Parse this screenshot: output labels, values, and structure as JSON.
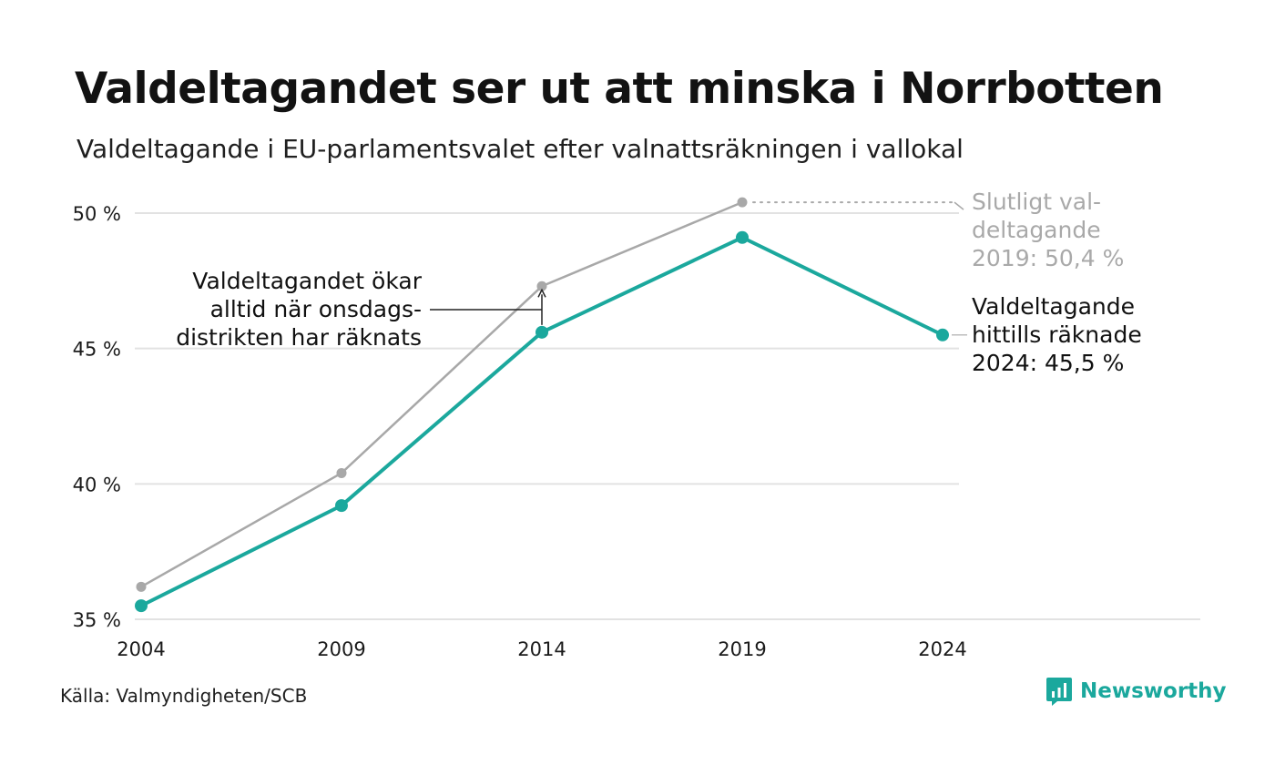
{
  "header": {
    "title": "Valdeltagandet ser ut att minska i Norrbotten",
    "subtitle": "Valdeltagande i EU-parlamentsvalet efter valnattsräkningen i vallokal"
  },
  "footer": {
    "source": "Källa: Valmyndigheten/SCB",
    "brand": "Newsworthy"
  },
  "colors": {
    "accent": "#1ba89d",
    "grey_series": "#a8a8a8",
    "grid": "#e2e2e2",
    "text": "#1b1b1b",
    "muted_text": "#a9a9a9"
  },
  "icons": {
    "brand_logo": "newsworthy-bar-chart-icon"
  },
  "chart_data": {
    "type": "line",
    "x": [
      2004,
      2009,
      2014,
      2019,
      2024
    ],
    "ylim": [
      35,
      50
    ],
    "yticks": [
      35,
      40,
      45,
      50
    ],
    "ytick_labels": [
      "35 %",
      "40 %",
      "45 %",
      "50 %"
    ],
    "xtick_labels": [
      "2004",
      "2009",
      "2014",
      "2019",
      "2024"
    ],
    "grid": "horizontal",
    "series": [
      {
        "key": "final",
        "values": [
          36.2,
          40.4,
          47.3,
          50.4,
          null
        ],
        "color": "#a8a8a8"
      },
      {
        "key": "counted",
        "values": [
          35.5,
          39.2,
          45.6,
          49.1,
          45.5
        ],
        "color": "#1ba89d"
      }
    ],
    "annotations": {
      "final_2019": [
        "Slutligt val-",
        "deltagande",
        "2019: 50,4 %"
      ],
      "counted_2024": [
        "Valdeltagande",
        "hittills räknade",
        "2024: 45,5 %"
      ],
      "increase_note": [
        "Valdeltagandet ökar",
        "alltid när onsdags-",
        "distrikten har räknats"
      ]
    }
  }
}
